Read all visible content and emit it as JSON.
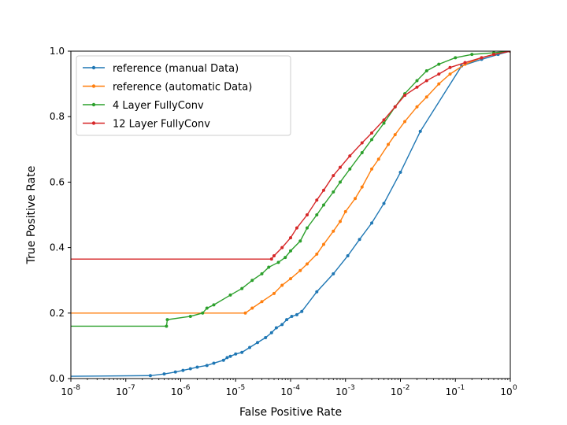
{
  "chart_data": {
    "type": "line",
    "title": "",
    "xlabel": "False Positive Rate",
    "ylabel": "True Positive Rate",
    "xscale": "log",
    "xlim": [
      1e-08,
      1
    ],
    "ylim": [
      0,
      1
    ],
    "xticks": [
      {
        "v": 1e-08,
        "exp": "-8"
      },
      {
        "v": 1e-07,
        "exp": "-7"
      },
      {
        "v": 1e-06,
        "exp": "-6"
      },
      {
        "v": 1e-05,
        "exp": "-5"
      },
      {
        "v": 0.0001,
        "exp": "-4"
      },
      {
        "v": 0.001,
        "exp": "-3"
      },
      {
        "v": 0.01,
        "exp": "-2"
      },
      {
        "v": 0.1,
        "exp": "-1"
      },
      {
        "v": 1,
        "exp": "0"
      }
    ],
    "xtick_base": "10",
    "yticks": [
      {
        "v": 0.0,
        "label": "0.0"
      },
      {
        "v": 0.2,
        "label": "0.2"
      },
      {
        "v": 0.4,
        "label": "0.4"
      },
      {
        "v": 0.6,
        "label": "0.6"
      },
      {
        "v": 0.8,
        "label": "0.8"
      },
      {
        "v": 1.0,
        "label": "1.0"
      }
    ],
    "grid": false,
    "legend_position": "top-left",
    "series": [
      {
        "name": "reference (manual Data)",
        "color": "#1f77b4",
        "points": [
          [
            1e-08,
            0.007
          ],
          [
            2.8e-07,
            0.009
          ],
          [
            5e-07,
            0.014
          ],
          [
            8e-07,
            0.02
          ],
          [
            1.1e-06,
            0.025
          ],
          [
            1.5e-06,
            0.03
          ],
          [
            2e-06,
            0.035
          ],
          [
            3e-06,
            0.04
          ],
          [
            4e-06,
            0.047
          ],
          [
            6e-06,
            0.056
          ],
          [
            7e-06,
            0.064
          ],
          [
            8e-06,
            0.068
          ],
          [
            1e-05,
            0.075
          ],
          [
            1.3e-05,
            0.08
          ],
          [
            1.8e-05,
            0.095
          ],
          [
            2.5e-05,
            0.11
          ],
          [
            3.5e-05,
            0.125
          ],
          [
            4.5e-05,
            0.14
          ],
          [
            5.5e-05,
            0.155
          ],
          [
            7e-05,
            0.165
          ],
          [
            8.5e-05,
            0.18
          ],
          [
            0.000105,
            0.19
          ],
          [
            0.00013,
            0.195
          ],
          [
            0.00016,
            0.205
          ],
          [
            0.0003,
            0.265
          ],
          [
            0.0006,
            0.32
          ],
          [
            0.0011,
            0.375
          ],
          [
            0.0018,
            0.425
          ],
          [
            0.003,
            0.475
          ],
          [
            0.005,
            0.535
          ],
          [
            0.01,
            0.63
          ],
          [
            0.023,
            0.755
          ],
          [
            0.13,
            0.955
          ],
          [
            0.3,
            0.975
          ],
          [
            0.6,
            0.99
          ],
          [
            1,
            1.0
          ]
        ]
      },
      {
        "name": "reference (automatic Data)",
        "color": "#ff7f0e",
        "points": [
          [
            1e-08,
            0.2
          ],
          [
            1.5e-05,
            0.2
          ],
          [
            2e-05,
            0.215
          ],
          [
            3e-05,
            0.235
          ],
          [
            5e-05,
            0.26
          ],
          [
            7e-05,
            0.285
          ],
          [
            0.0001,
            0.305
          ],
          [
            0.00015,
            0.33
          ],
          [
            0.0002,
            0.35
          ],
          [
            0.0003,
            0.38
          ],
          [
            0.0004,
            0.41
          ],
          [
            0.0006,
            0.45
          ],
          [
            0.0008,
            0.48
          ],
          [
            0.001,
            0.51
          ],
          [
            0.0015,
            0.55
          ],
          [
            0.002,
            0.585
          ],
          [
            0.003,
            0.64
          ],
          [
            0.004,
            0.67
          ],
          [
            0.006,
            0.715
          ],
          [
            0.008,
            0.745
          ],
          [
            0.012,
            0.785
          ],
          [
            0.02,
            0.83
          ],
          [
            0.03,
            0.86
          ],
          [
            0.05,
            0.9
          ],
          [
            0.08,
            0.93
          ],
          [
            0.15,
            0.96
          ],
          [
            0.3,
            0.98
          ],
          [
            0.5,
            0.99
          ],
          [
            1,
            1.0
          ]
        ]
      },
      {
        "name": "4 Layer FullyConv",
        "color": "#2ca02c",
        "points": [
          [
            1e-08,
            0.16
          ],
          [
            5.5e-07,
            0.16
          ],
          [
            5.7e-07,
            0.18
          ],
          [
            1.5e-06,
            0.19
          ],
          [
            2.5e-06,
            0.2
          ],
          [
            3e-06,
            0.215
          ],
          [
            4e-06,
            0.225
          ],
          [
            8e-06,
            0.255
          ],
          [
            1.3e-05,
            0.275
          ],
          [
            2e-05,
            0.3
          ],
          [
            3e-05,
            0.32
          ],
          [
            4e-05,
            0.34
          ],
          [
            6e-05,
            0.355
          ],
          [
            8e-05,
            0.37
          ],
          [
            0.0001,
            0.39
          ],
          [
            0.00015,
            0.42
          ],
          [
            0.0002,
            0.46
          ],
          [
            0.0003,
            0.5
          ],
          [
            0.0004,
            0.53
          ],
          [
            0.0006,
            0.57
          ],
          [
            0.0008,
            0.6
          ],
          [
            0.0012,
            0.64
          ],
          [
            0.002,
            0.69
          ],
          [
            0.003,
            0.73
          ],
          [
            0.005,
            0.78
          ],
          [
            0.008,
            0.83
          ],
          [
            0.012,
            0.87
          ],
          [
            0.02,
            0.91
          ],
          [
            0.03,
            0.94
          ],
          [
            0.05,
            0.96
          ],
          [
            0.1,
            0.98
          ],
          [
            0.2,
            0.99
          ],
          [
            0.5,
            0.995
          ],
          [
            1,
            1.0
          ]
        ]
      },
      {
        "name": "12 Layer FullyConv",
        "color": "#d62728",
        "points": [
          [
            1e-08,
            0.365
          ],
          [
            4.5e-05,
            0.365
          ],
          [
            5e-05,
            0.375
          ],
          [
            7e-05,
            0.4
          ],
          [
            0.0001,
            0.43
          ],
          [
            0.00013,
            0.46
          ],
          [
            0.0002,
            0.5
          ],
          [
            0.0003,
            0.545
          ],
          [
            0.0004,
            0.575
          ],
          [
            0.0006,
            0.62
          ],
          [
            0.0008,
            0.645
          ],
          [
            0.0012,
            0.68
          ],
          [
            0.002,
            0.72
          ],
          [
            0.003,
            0.75
          ],
          [
            0.005,
            0.79
          ],
          [
            0.008,
            0.83
          ],
          [
            0.012,
            0.865
          ],
          [
            0.02,
            0.89
          ],
          [
            0.03,
            0.91
          ],
          [
            0.05,
            0.93
          ],
          [
            0.08,
            0.95
          ],
          [
            0.15,
            0.965
          ],
          [
            0.3,
            0.98
          ],
          [
            0.5,
            0.99
          ],
          [
            1,
            1.0
          ]
        ]
      }
    ]
  }
}
